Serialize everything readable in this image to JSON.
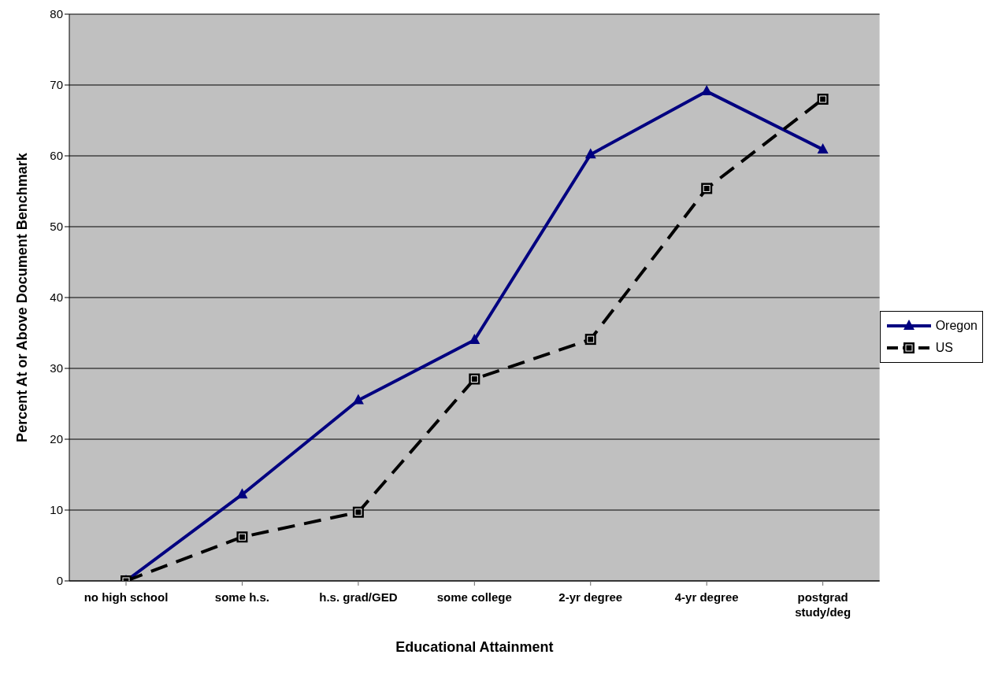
{
  "chart_data": {
    "type": "line",
    "xlabel": "Educational Attainment",
    "ylabel": "Percent At or Above Document Benchmark",
    "categories": [
      "no high school",
      "some h.s.",
      "h.s. grad/GED",
      "some college",
      "2-yr degree",
      "4-yr degree",
      "postgrad study/deg"
    ],
    "series": [
      {
        "name": "Oregon",
        "color": "#000080",
        "marker": "triangle",
        "line_style": "solid",
        "values": [
          0,
          12.2,
          25.5,
          34,
          60.2,
          69.1,
          60.9
        ]
      },
      {
        "name": "US",
        "color": "#000000",
        "marker": "square",
        "line_style": "dashed",
        "values": [
          0,
          6.2,
          9.7,
          28.5,
          34.1,
          55.4,
          68
        ]
      }
    ],
    "ylim": [
      0,
      80
    ],
    "yticks": [
      0,
      10,
      20,
      30,
      40,
      50,
      60,
      70,
      80
    ],
    "grid": "y",
    "legend": "right"
  }
}
